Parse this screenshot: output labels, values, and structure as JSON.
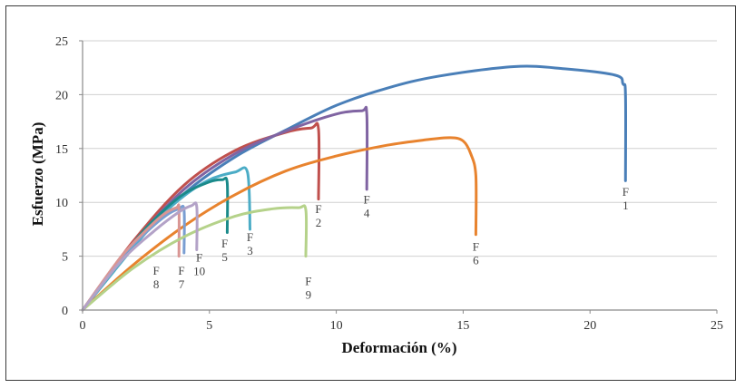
{
  "chart_data": {
    "type": "line",
    "xlabel": "Deformación (%)",
    "ylabel": "Esfuerzo (MPa)",
    "xlim": [
      0,
      25
    ],
    "ylim": [
      0,
      25
    ],
    "xticks": [
      "0",
      "5",
      "10",
      "15",
      "20",
      "25"
    ],
    "yticks": [
      "0",
      "5",
      "10",
      "15",
      "20",
      "25"
    ],
    "grid": "horizontal",
    "series": [
      {
        "name": "F1",
        "color": "#4a7fb8",
        "points": [
          [
            0,
            0
          ],
          [
            2,
            6
          ],
          [
            4,
            10.8
          ],
          [
            6,
            14.2
          ],
          [
            8,
            16.7
          ],
          [
            10,
            19.0
          ],
          [
            12,
            20.6
          ],
          [
            14,
            21.7
          ],
          [
            17,
            22.6
          ],
          [
            19,
            22.4
          ],
          [
            21,
            21.8
          ],
          [
            21.3,
            21.0
          ],
          [
            21.4,
            20.0
          ],
          [
            21.4,
            12.0
          ]
        ]
      },
      {
        "name": "F2",
        "color": "#c0504d",
        "points": [
          [
            0,
            0
          ],
          [
            2,
            6.4
          ],
          [
            4,
            11.6
          ],
          [
            6,
            14.8
          ],
          [
            8,
            16.5
          ],
          [
            9,
            16.9
          ],
          [
            9.3,
            16.8
          ],
          [
            9.3,
            10.3
          ]
        ]
      },
      {
        "name": "F3",
        "color": "#4bacc6",
        "points": [
          [
            0,
            0
          ],
          [
            2,
            5.8
          ],
          [
            3,
            8.5
          ],
          [
            4,
            10.6
          ],
          [
            5,
            12.1
          ],
          [
            6,
            12.8
          ],
          [
            6.5,
            12.8
          ],
          [
            6.6,
            7.5
          ]
        ]
      },
      {
        "name": "F4",
        "color": "#8064a2",
        "points": [
          [
            0,
            0
          ],
          [
            2,
            6.2
          ],
          [
            4,
            11.2
          ],
          [
            6,
            14.5
          ],
          [
            8,
            16.6
          ],
          [
            10,
            18.2
          ],
          [
            11,
            18.5
          ],
          [
            11.2,
            18.2
          ],
          [
            11.2,
            11.2
          ]
        ]
      },
      {
        "name": "F5",
        "color": "#1a8a8a",
        "points": [
          [
            0,
            0
          ],
          [
            2,
            6.2
          ],
          [
            3,
            8.8
          ],
          [
            4,
            10.8
          ],
          [
            5,
            11.9
          ],
          [
            5.5,
            12.1
          ],
          [
            5.7,
            11.8
          ],
          [
            5.7,
            7.2
          ]
        ]
      },
      {
        "name": "F6",
        "color": "#e8832e",
        "points": [
          [
            0,
            0
          ],
          [
            2,
            4.2
          ],
          [
            4,
            7.8
          ],
          [
            6,
            10.7
          ],
          [
            8,
            12.9
          ],
          [
            10,
            14.3
          ],
          [
            12,
            15.3
          ],
          [
            13.5,
            15.8
          ],
          [
            14.5,
            16.0
          ],
          [
            15,
            15.7
          ],
          [
            15.3,
            14.5
          ],
          [
            15.5,
            12.5
          ],
          [
            15.5,
            7.0
          ]
        ]
      },
      {
        "name": "F7",
        "color": "#7a9ed2",
        "points": [
          [
            0,
            0
          ],
          [
            1.5,
            4.8
          ],
          [
            2.5,
            7.2
          ],
          [
            3.3,
            8.8
          ],
          [
            3.8,
            9.4
          ],
          [
            4.0,
            9.3
          ],
          [
            4.0,
            5.3
          ]
        ]
      },
      {
        "name": "F8",
        "color": "#d99694",
        "points": [
          [
            0,
            0
          ],
          [
            1.5,
            4.9
          ],
          [
            2.5,
            7.4
          ],
          [
            3.2,
            8.9
          ],
          [
            3.7,
            9.5
          ],
          [
            3.8,
            9.4
          ],
          [
            3.8,
            5.0
          ]
        ]
      },
      {
        "name": "F9",
        "color": "#b5d28a",
        "points": [
          [
            0,
            0
          ],
          [
            2,
            3.9
          ],
          [
            4,
            6.8
          ],
          [
            6,
            8.7
          ],
          [
            7.5,
            9.4
          ],
          [
            8.5,
            9.5
          ],
          [
            8.8,
            9.3
          ],
          [
            8.8,
            5.0
          ]
        ]
      },
      {
        "name": "F10",
        "color": "#b3a2c7",
        "points": [
          [
            0,
            0
          ],
          [
            1.5,
            4.5
          ],
          [
            2.8,
            7.3
          ],
          [
            3.8,
            9.1
          ],
          [
            4.3,
            9.7
          ],
          [
            4.5,
            9.6
          ],
          [
            4.5,
            5.6
          ]
        ]
      }
    ],
    "labels": [
      {
        "text": "F\n1",
        "x": 21.4,
        "y": 10.6
      },
      {
        "text": "F\n2",
        "x": 9.3,
        "y": 9.0
      },
      {
        "text": "F\n3",
        "x": 6.6,
        "y": 6.4
      },
      {
        "text": "F\n4",
        "x": 11.2,
        "y": 9.9
      },
      {
        "text": "F\n5",
        "x": 5.6,
        "y": 5.8
      },
      {
        "text": "F\n6",
        "x": 15.5,
        "y": 5.5
      },
      {
        "text": "F\n7",
        "x": 3.9,
        "y": 3.3
      },
      {
        "text": "F\n8",
        "x": 2.9,
        "y": 3.3
      },
      {
        "text": "F\n9",
        "x": 8.9,
        "y": 2.3
      },
      {
        "text": "F\n10",
        "x": 4.6,
        "y": 4.5
      }
    ]
  }
}
